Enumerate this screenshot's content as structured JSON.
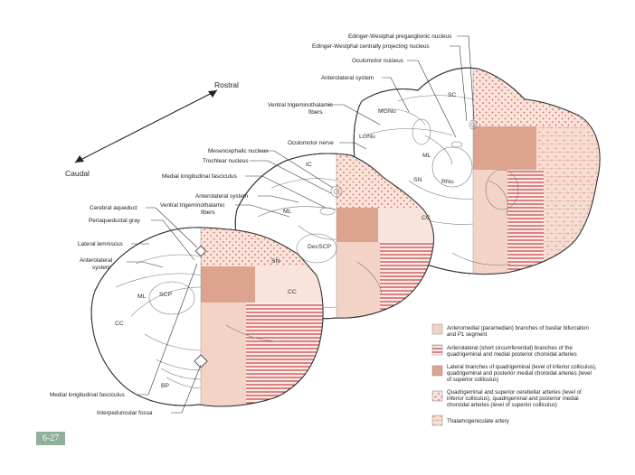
{
  "figure_number": "6-27",
  "orientation": {
    "rostral": "Rostral",
    "caudal": "Caudal"
  },
  "labels": {
    "ewp": "Edinger-Westphal preganglionic nucleus",
    "ewc": "Edinger-Westphal centrally projecting nucleus",
    "oculomotor_nucleus": "Oculomotor nucleus",
    "anterolateral_top": "Anterolateral system",
    "vtt_top_1": "Ventral trigeminothalamic",
    "vtt_top_2": "fibers",
    "oculomotor_nerve": "Oculomotor nerve",
    "mesencephalic": "Mesencephalic nucleus",
    "trochlear": "Trochlear nucleus",
    "mlf_mid": "Medial longitudinal fasciculus",
    "anterolateral_mid": "Anterolateral system",
    "vtt_mid_1": "Ventral trigeminothalamic",
    "vtt_mid_2": "fibers",
    "cerebral_aqueduct": "Cerebral aqueduct",
    "periaqueductal": "Periaqueductal gray",
    "lateral_lemniscus": "Lateral lemniscus",
    "anterolateral_low_1": "Anterolateral",
    "anterolateral_low_2": "system",
    "mlf_low": "Medial longitudinal fasciculus",
    "interpeduncular": "Interpeduncular fossa"
  },
  "inner_labels": {
    "sc": "SC",
    "mgnu": "MGNu",
    "lgnu": "LGNu",
    "ml_top": "ML",
    "sn_top": "SN",
    "rnu": "RNu",
    "cc_top": "CC",
    "ic": "IC",
    "ml_mid": "ML",
    "decscp": "DecSCP",
    "sn_mid": "SN",
    "cc_mid": "CC",
    "ml_low": "ML",
    "scp": "SCP",
    "cc_low": "CC",
    "bp": "BP"
  },
  "legend": [
    {
      "lines": [
        "Anteromedial (paramedian) branches of basilar bifurcation",
        "and P1 segment"
      ]
    },
    {
      "lines": [
        "Anterolateral (short circumferential) branches of the",
        "quadrigeminal and medial posterior choroidal arteries"
      ]
    },
    {
      "lines": [
        "Lateral branches of quadrigeminal (level of inferior colliculus),",
        "quadrigeminal and posterior medial choroidal arteries (level",
        "of superior colliculus)"
      ]
    },
    {
      "lines": [
        "Quadrigeminal and superior cerebellar arteries (level of",
        "inferior colliculus), quadrigeminal and posterior medial",
        "choroidal arteries (level of superior colliculus)"
      ]
    },
    {
      "lines": [
        "Thalamogeniculate artery"
      ]
    }
  ],
  "colors": {
    "anteromedial": "#f3d3c6",
    "anterolateral_stripe": "#c8262c",
    "lateral": "#dca38f",
    "quadrigeminal_dots": "#d2685a",
    "thalamogeniculate": "#f3d3c6",
    "figure_badge": "#8fb09a"
  }
}
